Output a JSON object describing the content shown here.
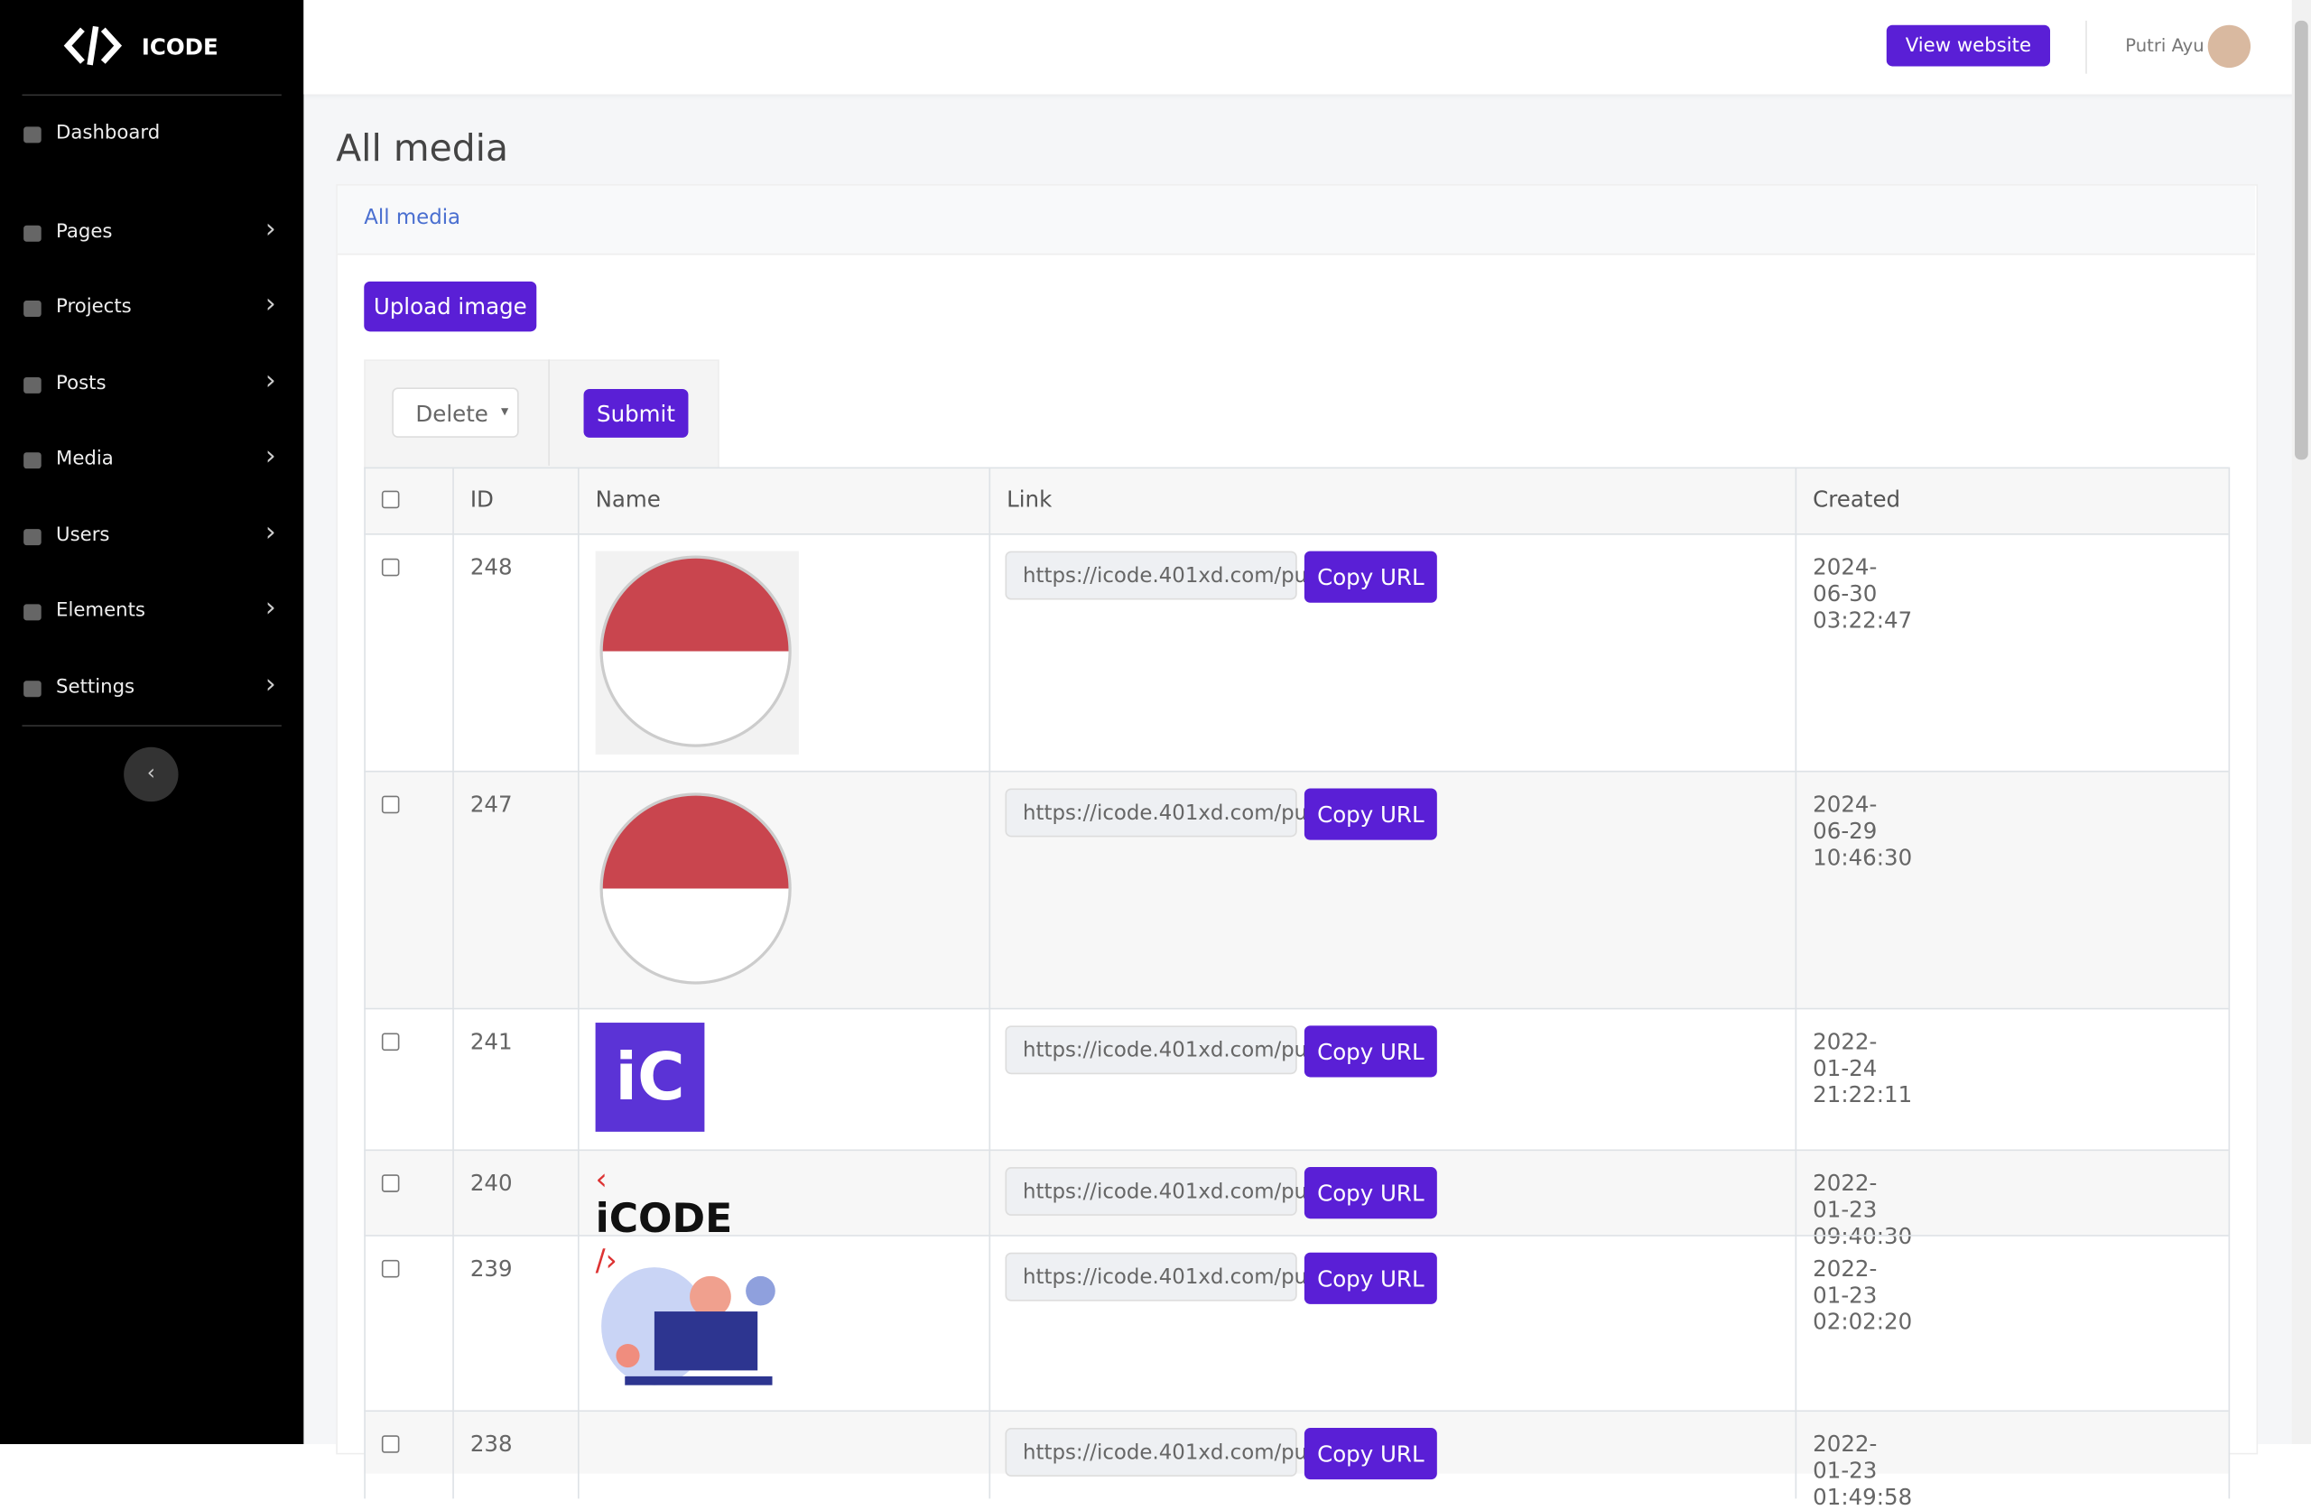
{
  "sidebar": {
    "brand": "ICODE",
    "menu": [
      "Dashboard",
      "Pages",
      "Projects",
      "Posts",
      "Media",
      "Users",
      "Elements",
      "Settings"
    ]
  },
  "header": {
    "view_website": "View website",
    "user": "Putri Ayu"
  },
  "page": {
    "title": "All media",
    "tab": "All media",
    "upload": "Upload image",
    "bulk_action": "Delete",
    "submit": "Submit"
  },
  "table": {
    "columns": [
      "ID",
      "Name",
      "Link",
      "Created"
    ],
    "copy_button": "Copy URL",
    "rows": [
      {
        "id": "248",
        "link": "https://icode.401xd.com/pu",
        "created": "2024-06-30 03:22:47"
      },
      {
        "id": "247",
        "link": "https://icode.401xd.com/pu",
        "created": "2024-06-29 10:46:30"
      },
      {
        "id": "241",
        "image_text": "iC",
        "link": "https://icode.401xd.com/pu",
        "created": "2022-01-24 21:22:11"
      },
      {
        "id": "240",
        "image_text": "iCODE",
        "link": "https://icode.401xd.com/pu",
        "created": "2022-01-23 09:40:30"
      },
      {
        "id": "239",
        "link": "https://icode.401xd.com/pu",
        "created": "2022-01-23 02:02:20"
      },
      {
        "id": "238",
        "link": "https://icode.401xd.com/pu",
        "created": "2022-01-23 01:49:58"
      }
    ]
  }
}
